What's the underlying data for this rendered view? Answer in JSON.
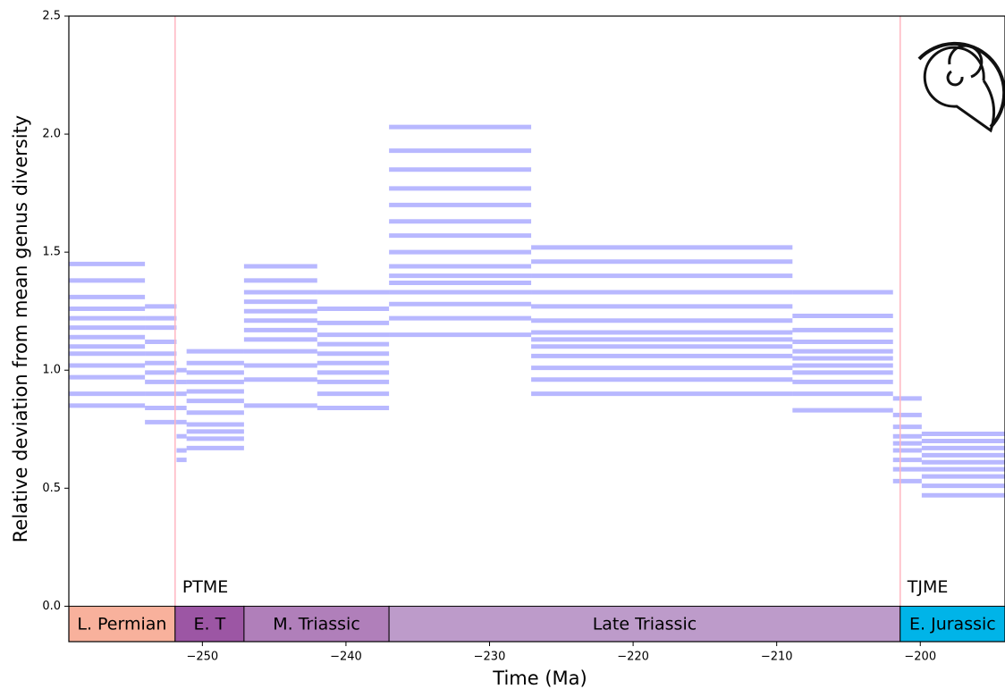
{
  "chart_data": {
    "type": "step-samples",
    "x_label": "Time (Ma)",
    "y_label": "Relative deviation from mean genus diversity",
    "xlim": [
      -259.3,
      -194.1
    ],
    "ylim": [
      -0.15,
      2.5
    ],
    "xticks": [
      {
        "value": -250,
        "label": "−250"
      },
      {
        "value": -240,
        "label": "−240"
      },
      {
        "value": -230,
        "label": "−230"
      },
      {
        "value": -220,
        "label": "−220"
      },
      {
        "value": -210,
        "label": "−210"
      },
      {
        "value": -200,
        "label": "−200"
      }
    ],
    "yticks": [
      0.0,
      0.5,
      1.0,
      1.5,
      2.0,
      2.5
    ],
    "color": "#0000ff",
    "intervals": [
      {
        "start": -259.3,
        "end": -254.0,
        "values": [
          0.85,
          0.9,
          0.97,
          1.02,
          1.07,
          1.1,
          1.14,
          1.18,
          1.22,
          1.26,
          1.31,
          1.38,
          1.45
        ]
      },
      {
        "start": -254.0,
        "end": -251.8,
        "values": [
          0.78,
          0.84,
          0.9,
          0.95,
          0.99,
          1.03,
          1.07,
          1.12,
          1.18,
          1.22,
          1.27
        ]
      },
      {
        "start": -251.8,
        "end": -251.1,
        "values": [
          0.62,
          0.66,
          0.72,
          0.78,
          0.84,
          0.9,
          0.95,
          1.0
        ]
      },
      {
        "start": -251.1,
        "end": -247.1,
        "values": [
          0.67,
          0.71,
          0.74,
          0.77,
          0.82,
          0.87,
          0.91,
          0.95,
          0.99,
          1.03,
          1.08
        ]
      },
      {
        "start": -247.1,
        "end": -242.0,
        "values": [
          0.85,
          0.96,
          1.02,
          1.08,
          1.13,
          1.17,
          1.21,
          1.25,
          1.29,
          1.33,
          1.38,
          1.44
        ]
      },
      {
        "start": -242.0,
        "end": -237.0,
        "values": [
          0.84,
          0.9,
          0.95,
          0.99,
          1.03,
          1.07,
          1.11,
          1.15,
          1.2,
          1.26,
          1.33
        ]
      },
      {
        "start": -237.0,
        "end": -227.1,
        "values": [
          1.15,
          1.22,
          1.28,
          1.33,
          1.37,
          1.4,
          1.44,
          1.5,
          1.57,
          1.63,
          1.7,
          1.77,
          1.85,
          1.93,
          2.03
        ]
      },
      {
        "start": -227.1,
        "end": -208.9,
        "values": [
          0.9,
          0.96,
          1.01,
          1.06,
          1.1,
          1.13,
          1.16,
          1.21,
          1.27,
          1.33,
          1.4,
          1.46,
          1.52
        ]
      },
      {
        "start": -208.9,
        "end": -201.9,
        "values": [
          0.83,
          0.9,
          0.95,
          0.99,
          1.02,
          1.05,
          1.08,
          1.12,
          1.17,
          1.23,
          1.33
        ]
      },
      {
        "start": -201.9,
        "end": -199.9,
        "values": [
          0.53,
          0.58,
          0.62,
          0.66,
          0.69,
          0.72,
          0.76,
          0.81,
          0.88
        ]
      },
      {
        "start": -199.9,
        "end": -194.1,
        "values": [
          0.47,
          0.51,
          0.55,
          0.58,
          0.61,
          0.64,
          0.67,
          0.7,
          0.73
        ]
      }
    ],
    "periods": [
      {
        "name": "L. Permian",
        "start": -259.3,
        "end": -251.9,
        "color": "#f8b19c"
      },
      {
        "name": "E. T",
        "start": -251.9,
        "end": -247.1,
        "color": "#9c56a4"
      },
      {
        "name": "M. Triassic",
        "start": -247.1,
        "end": -237.0,
        "color": "#b07fba"
      },
      {
        "name": "Late Triassic",
        "start": -237.0,
        "end": -201.4,
        "color": "#bd9bca"
      },
      {
        "name": "E. Jurassic",
        "start": -201.4,
        "end": -194.1,
        "color": "#00b4e8"
      }
    ],
    "events": [
      {
        "label": "PTME",
        "x": -251.9,
        "color": "#ff0000"
      },
      {
        "label": "TJME",
        "x": -201.4,
        "color": "#ff0000"
      }
    ]
  }
}
